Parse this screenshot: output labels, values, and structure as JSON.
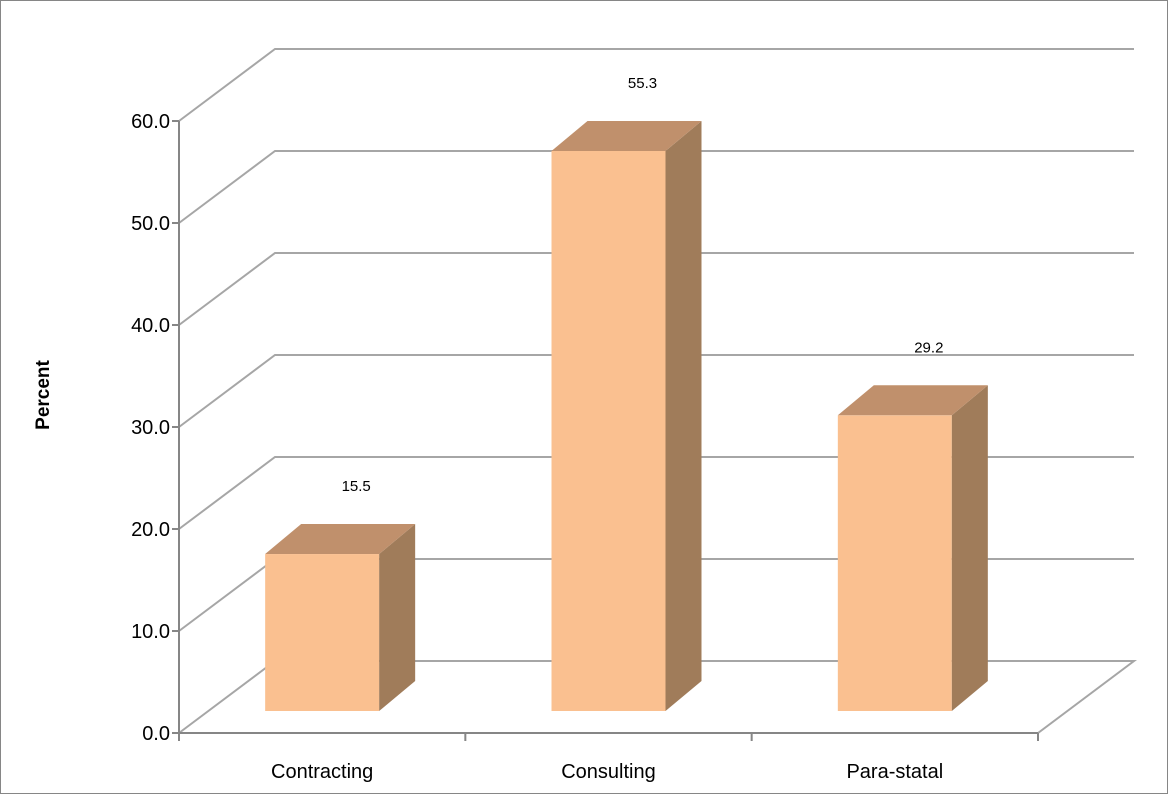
{
  "chart_data": {
    "type": "bar",
    "style": "3d-column",
    "title": "",
    "xlabel": "",
    "ylabel": "Percent",
    "categories": [
      "Contracting",
      "Consulting",
      "Para-statal"
    ],
    "values": [
      15.5,
      55.3,
      29.2
    ],
    "data_labels": [
      "15.5",
      "55.3",
      "29.2"
    ],
    "ylim": [
      0,
      60
    ],
    "yticks": [
      "0.0",
      "10.0",
      "20.0",
      "30.0",
      "40.0",
      "50.0",
      "60.0"
    ],
    "grid": true,
    "legend": "none",
    "colors": {
      "bar_front": "#FAC090",
      "bar_top": "#C0906C",
      "bar_side": "#A07C5A",
      "grid": "#A6A6A6",
      "frame": "#868686"
    }
  }
}
